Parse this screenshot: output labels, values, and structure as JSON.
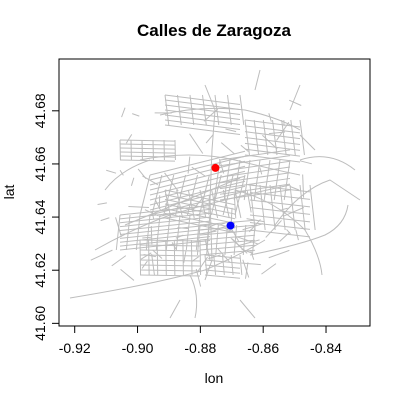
{
  "chart_data": {
    "type": "scatter",
    "title": "Calles de Zaragoza",
    "xlabel": "lon",
    "ylabel": "lat",
    "xlim": [
      -0.925,
      -0.826
    ],
    "ylim": [
      41.599,
      41.6995
    ],
    "x_ticks": [
      -0.92,
      -0.9,
      -0.88,
      -0.86,
      -0.84
    ],
    "x_tick_labels": [
      "-0.92",
      "-0.90",
      "-0.88",
      "-0.86",
      "-0.84"
    ],
    "y_ticks": [
      41.6,
      41.62,
      41.64,
      41.66,
      41.68
    ],
    "y_tick_labels": [
      "41.60",
      "41.62",
      "41.64",
      "41.66",
      "41.68"
    ],
    "grid": false,
    "street_color": "#bdbdbd",
    "points": [
      {
        "x": -0.8752,
        "y": 41.6585,
        "color": "#ff0000"
      },
      {
        "x": -0.8704,
        "y": 41.6368,
        "color": "#0000ff"
      }
    ]
  }
}
